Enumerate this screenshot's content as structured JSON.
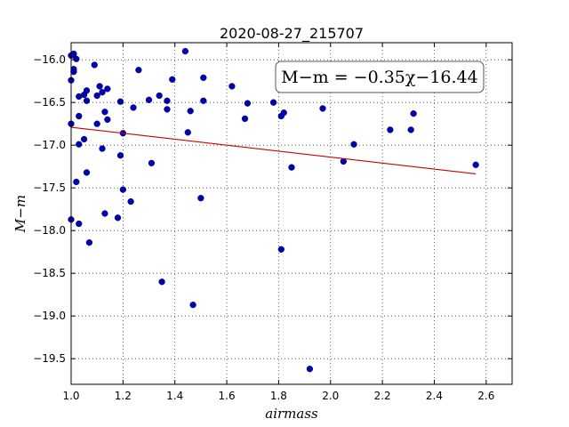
{
  "chart_data": {
    "type": "scatter",
    "title": "2020-08-27_215707",
    "xlabel": "airmass",
    "ylabel": "M−m",
    "xlim": [
      1.0,
      2.7
    ],
    "ylim": [
      -19.8,
      -15.8
    ],
    "x_ticks": [
      1.0,
      1.2,
      1.4,
      1.6,
      1.8,
      2.0,
      2.2,
      2.4,
      2.6
    ],
    "x_tick_labels": [
      "1.0",
      "1.2",
      "1.4",
      "1.6",
      "1.8",
      "2.0",
      "2.2",
      "2.4",
      "2.6"
    ],
    "y_ticks": [
      -16.0,
      -16.5,
      -17.0,
      -17.5,
      -18.0,
      -18.5,
      -19.0,
      -19.5
    ],
    "y_tick_labels": [
      "−16.0",
      "−16.5",
      "−17.0",
      "−17.5",
      "−18.0",
      "−18.5",
      "−19.0",
      "−19.5"
    ],
    "grid": true,
    "annotation": "M−m = −0.35χ−16.44",
    "fit": {
      "slope": -0.35,
      "intercept": -16.44,
      "x_range": [
        1.0,
        2.56
      ],
      "color": "#cc0000"
    },
    "point_color": "#0000b3",
    "points": [
      [
        1.0,
        -15.95
      ],
      [
        1.0,
        -16.24
      ],
      [
        1.0,
        -16.75
      ],
      [
        1.0,
        -17.87
      ],
      [
        1.01,
        -15.93
      ],
      [
        1.01,
        -16.11
      ],
      [
        1.01,
        -16.14
      ],
      [
        1.02,
        -15.99
      ],
      [
        1.02,
        -17.43
      ],
      [
        1.03,
        -16.43
      ],
      [
        1.03,
        -16.66
      ],
      [
        1.03,
        -16.99
      ],
      [
        1.03,
        -17.92
      ],
      [
        1.05,
        -16.41
      ],
      [
        1.05,
        -16.93
      ],
      [
        1.06,
        -16.36
      ],
      [
        1.06,
        -16.48
      ],
      [
        1.06,
        -17.32
      ],
      [
        1.07,
        -18.14
      ],
      [
        1.09,
        -16.06
      ],
      [
        1.1,
        -16.42
      ],
      [
        1.1,
        -16.75
      ],
      [
        1.11,
        -16.31
      ],
      [
        1.12,
        -16.38
      ],
      [
        1.12,
        -17.04
      ],
      [
        1.13,
        -16.61
      ],
      [
        1.13,
        -17.8
      ],
      [
        1.14,
        -16.34
      ],
      [
        1.14,
        -16.7
      ],
      [
        1.18,
        -17.85
      ],
      [
        1.19,
        -16.49
      ],
      [
        1.19,
        -17.12
      ],
      [
        1.2,
        -16.86
      ],
      [
        1.2,
        -17.52
      ],
      [
        1.23,
        -17.66
      ],
      [
        1.24,
        -16.56
      ],
      [
        1.26,
        -16.12
      ],
      [
        1.3,
        -16.47
      ],
      [
        1.31,
        -17.21
      ],
      [
        1.34,
        -16.42
      ],
      [
        1.35,
        -18.6
      ],
      [
        1.37,
        -16.48
      ],
      [
        1.37,
        -16.58
      ],
      [
        1.39,
        -16.23
      ],
      [
        1.44,
        -15.9
      ],
      [
        1.45,
        -16.85
      ],
      [
        1.46,
        -16.6
      ],
      [
        1.47,
        -18.87
      ],
      [
        1.5,
        -17.62
      ],
      [
        1.51,
        -16.21
      ],
      [
        1.51,
        -16.48
      ],
      [
        1.62,
        -16.31
      ],
      [
        1.67,
        -16.69
      ],
      [
        1.68,
        -16.51
      ],
      [
        1.78,
        -16.5
      ],
      [
        1.81,
        -16.66
      ],
      [
        1.81,
        -18.22
      ],
      [
        1.82,
        -16.62
      ],
      [
        1.85,
        -17.26
      ],
      [
        1.92,
        -19.62
      ],
      [
        1.97,
        -16.57
      ],
      [
        2.05,
        -17.19
      ],
      [
        2.09,
        -16.99
      ],
      [
        2.23,
        -16.82
      ],
      [
        2.31,
        -16.82
      ],
      [
        2.32,
        -16.63
      ],
      [
        2.56,
        -17.23
      ]
    ]
  }
}
